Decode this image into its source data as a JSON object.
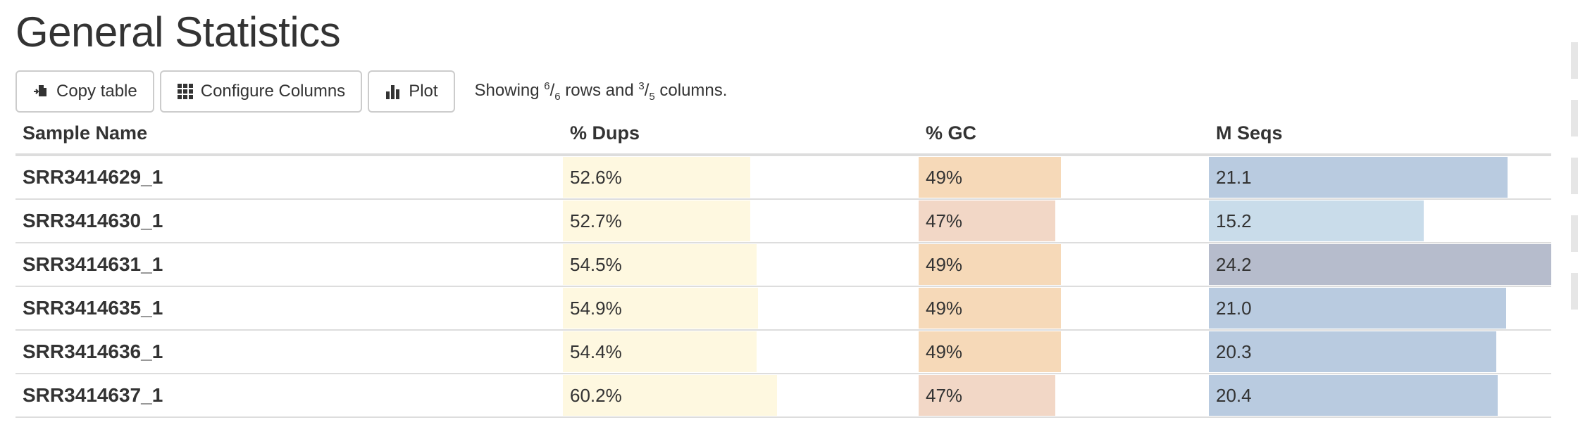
{
  "page_title": "General Statistics",
  "toolbar": {
    "copy_label": "Copy table",
    "configure_label": "Configure Columns",
    "plot_label": "Plot",
    "showing_prefix": "Showing ",
    "rows_shown": "6",
    "rows_total": "6",
    "rows_word": " rows and ",
    "cols_shown": "3",
    "cols_total": "5",
    "cols_word": " columns."
  },
  "columns": [
    {
      "key": "name",
      "label": "Sample Name"
    },
    {
      "key": "dups",
      "label": "% Dups",
      "max": 100,
      "color": "#fef8e0"
    },
    {
      "key": "gc",
      "label": "% GC",
      "max": 100
    },
    {
      "key": "mseqs",
      "label": "M Seqs",
      "max": 24.2
    }
  ],
  "rows": [
    {
      "name": "SRR3414629_1",
      "dups": {
        "text": "52.6%",
        "value": 52.6
      },
      "gc": {
        "text": "49%",
        "value": 49,
        "color": "#f6d9b8"
      },
      "mseqs": {
        "text": "21.1",
        "value": 21.1,
        "color": "#b9cbe0"
      }
    },
    {
      "name": "SRR3414630_1",
      "dups": {
        "text": "52.7%",
        "value": 52.7
      },
      "gc": {
        "text": "47%",
        "value": 47,
        "color": "#f2d7c6"
      },
      "mseqs": {
        "text": "15.2",
        "value": 15.2,
        "color": "#c9dcea"
      }
    },
    {
      "name": "SRR3414631_1",
      "dups": {
        "text": "54.5%",
        "value": 54.5
      },
      "gc": {
        "text": "49%",
        "value": 49,
        "color": "#f6d9b8"
      },
      "mseqs": {
        "text": "24.2",
        "value": 24.2,
        "color": "#b6bccc"
      }
    },
    {
      "name": "SRR3414635_1",
      "dups": {
        "text": "54.9%",
        "value": 54.9
      },
      "gc": {
        "text": "49%",
        "value": 49,
        "color": "#f6d9b8"
      },
      "mseqs": {
        "text": "21.0",
        "value": 21.0,
        "color": "#b9cbe0"
      }
    },
    {
      "name": "SRR3414636_1",
      "dups": {
        "text": "54.4%",
        "value": 54.4
      },
      "gc": {
        "text": "49%",
        "value": 49,
        "color": "#f6d9b8"
      },
      "mseqs": {
        "text": "20.3",
        "value": 20.3,
        "color": "#b9cbe0"
      }
    },
    {
      "name": "SRR3414637_1",
      "dups": {
        "text": "60.2%",
        "value": 60.2
      },
      "gc": {
        "text": "47%",
        "value": 47,
        "color": "#f2d7c6"
      },
      "mseqs": {
        "text": "20.4",
        "value": 20.4,
        "color": "#b9cbe0"
      }
    }
  ]
}
